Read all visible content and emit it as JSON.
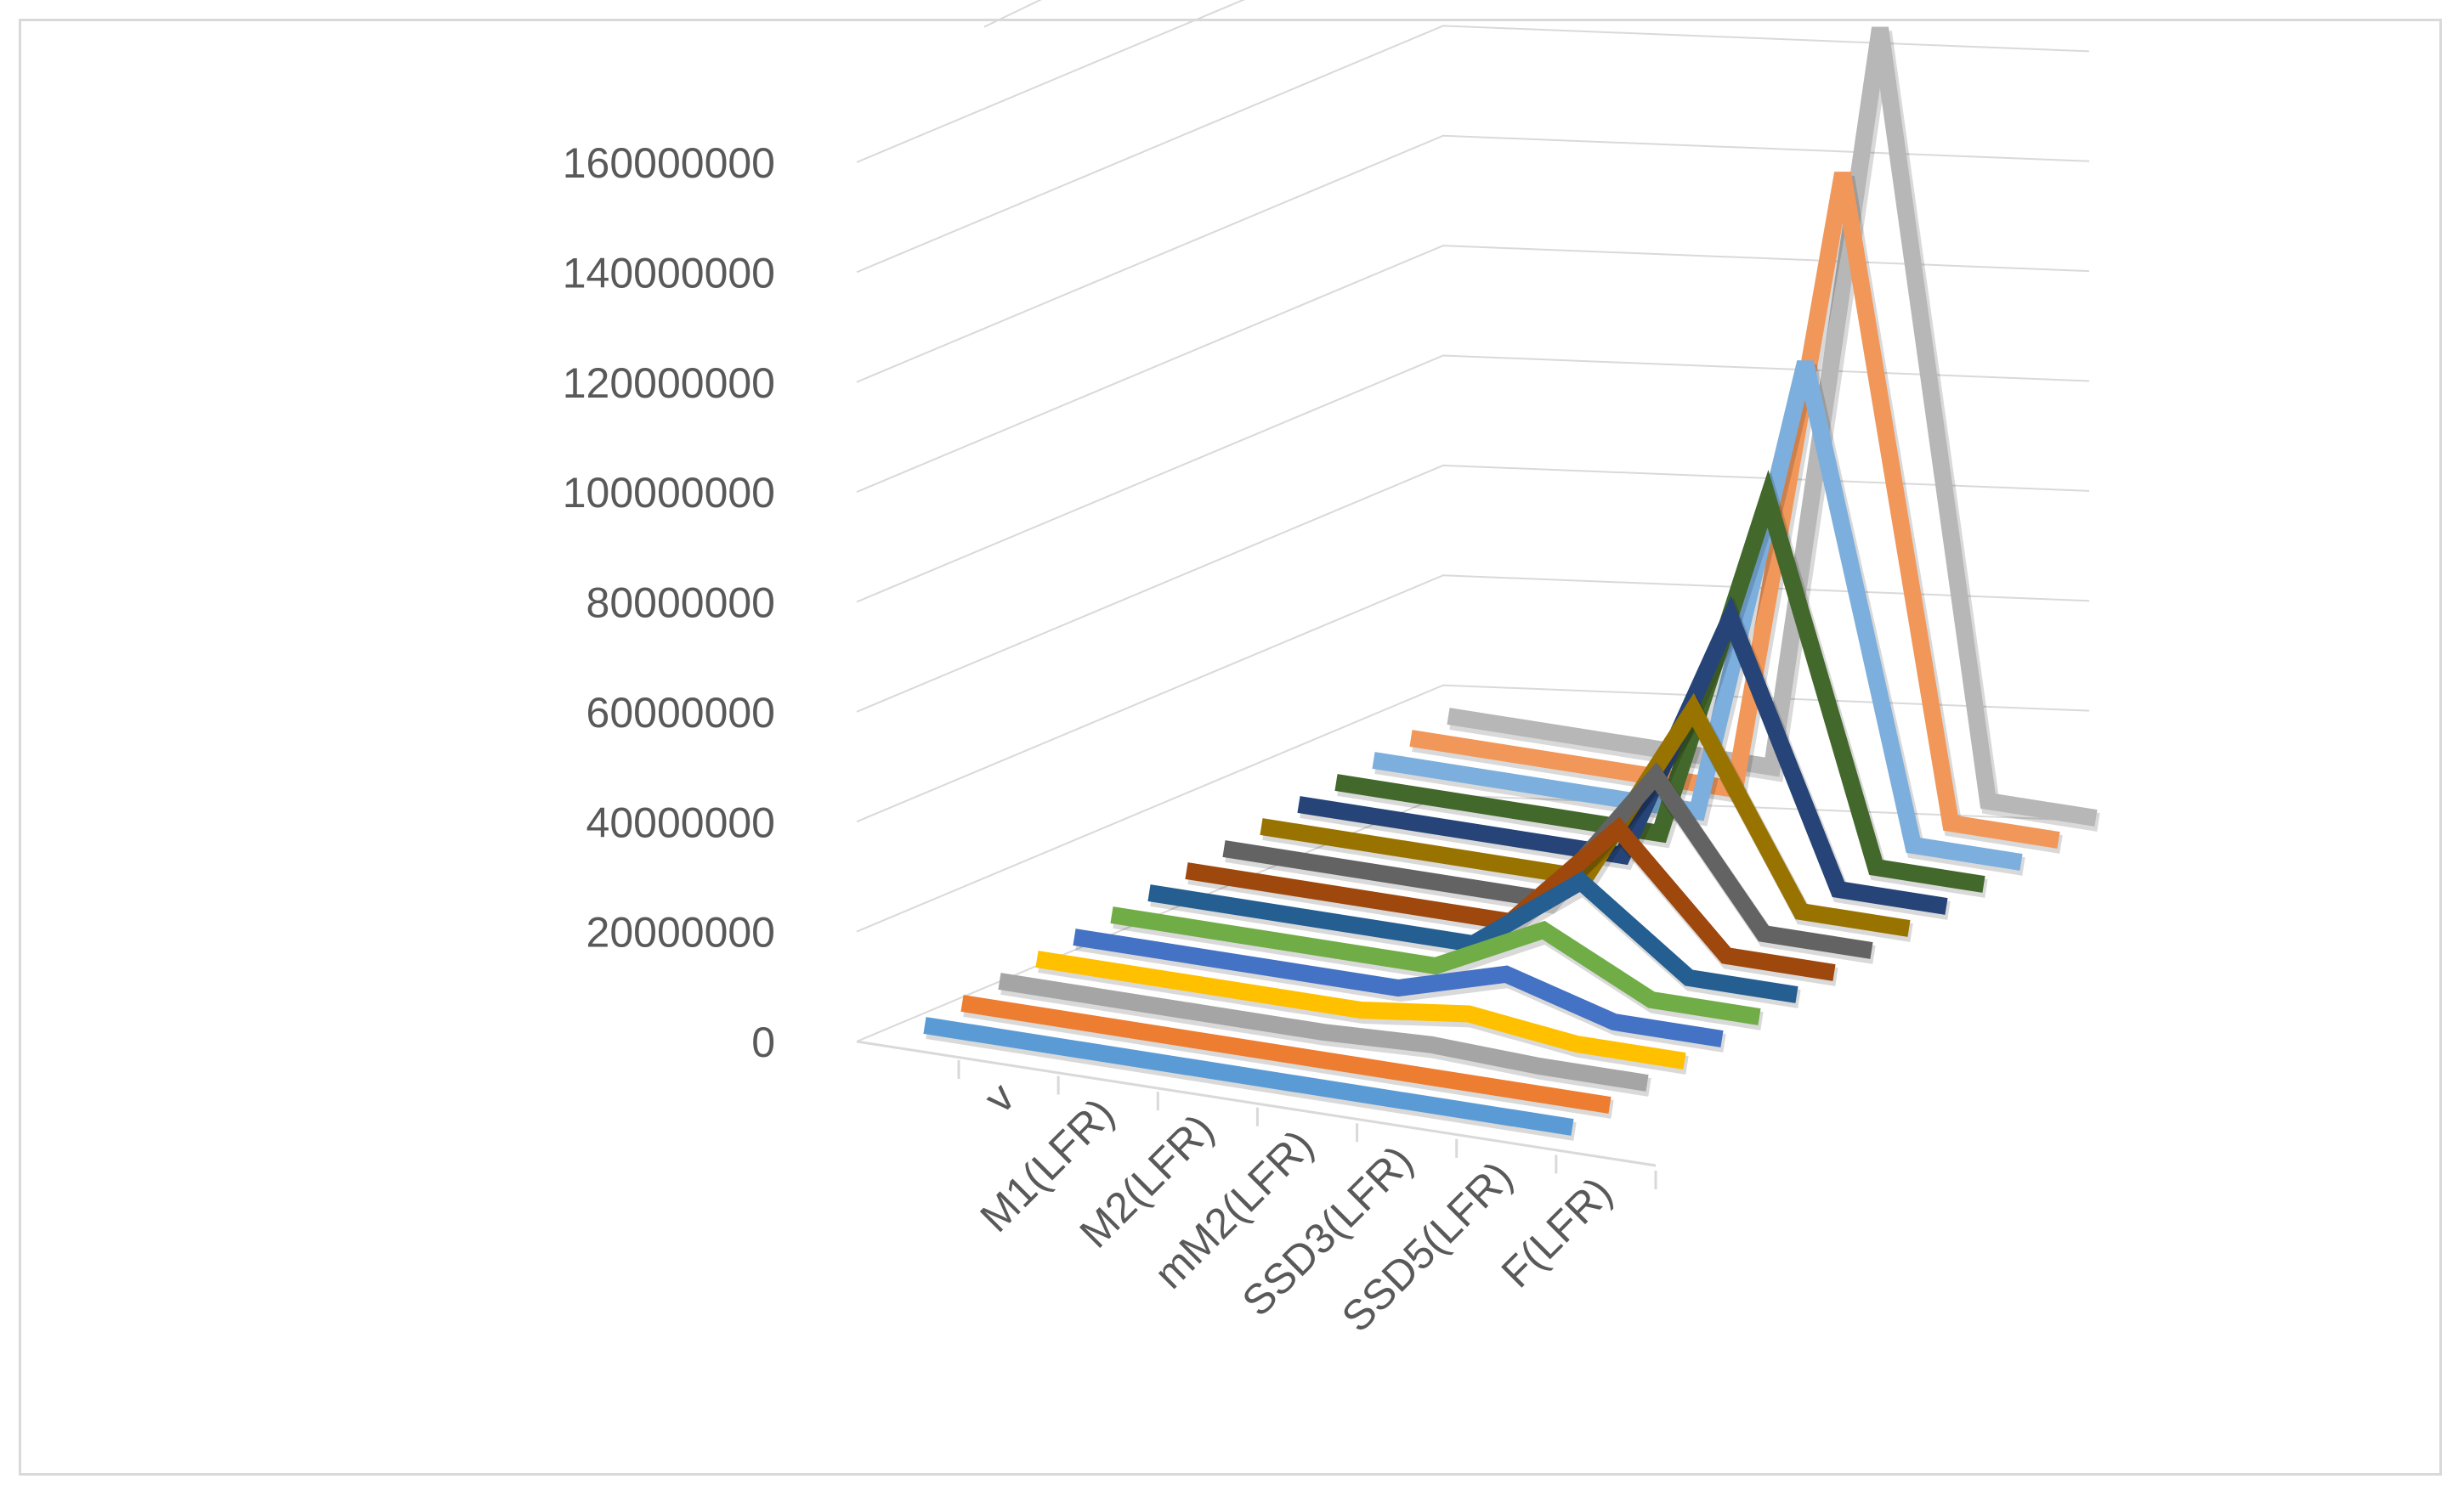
{
  "chart_data": {
    "type": "line",
    "subtype": "3d-line",
    "title": "",
    "xlabel": "",
    "ylabel": "",
    "ylim": [
      0,
      160000000
    ],
    "yticks": [
      "0",
      "20000000",
      "40000000",
      "60000000",
      "80000000",
      "100000000",
      "120000000",
      "140000000",
      "160000000"
    ],
    "categories": [
      "v",
      "M1(LFR)",
      "M2(LFR)",
      "mM2(LFR)",
      "SSD3(LFR)",
      "SSD5(LFR)",
      "F(LFR)"
    ],
    "grid": true,
    "legend": "none",
    "series": [
      {
        "color": "#5B9BD5",
        "values": [
          0,
          0,
          0,
          0,
          0,
          0,
          0
        ]
      },
      {
        "color": "#ED7D31",
        "values": [
          0,
          0,
          0,
          0,
          0,
          0,
          0
        ]
      },
      {
        "color": "#A5A5A5",
        "values": [
          0,
          0,
          0,
          0,
          1000000,
          0,
          0
        ]
      },
      {
        "color": "#FFC000",
        "values": [
          0,
          0,
          0,
          0,
          3000000,
          0,
          0
        ]
      },
      {
        "color": "#4472C4",
        "values": [
          0,
          0,
          0,
          0,
          7000000,
          0,
          0
        ]
      },
      {
        "color": "#70AD47",
        "values": [
          0,
          0,
          0,
          0,
          12000000,
          0,
          0
        ]
      },
      {
        "color": "#255E91",
        "values": [
          0,
          0,
          0,
          0,
          18000000,
          0,
          0
        ]
      },
      {
        "color": "#9E480E",
        "values": [
          0,
          0,
          0,
          0,
          25000000,
          0,
          0
        ]
      },
      {
        "color": "#636363",
        "values": [
          0,
          0,
          0,
          0,
          32000000,
          0,
          0
        ]
      },
      {
        "color": "#997300",
        "values": [
          0,
          0,
          0,
          0,
          42000000,
          0,
          0
        ]
      },
      {
        "color": "#264478",
        "values": [
          0,
          0,
          0,
          0,
          58000000,
          0,
          0
        ]
      },
      {
        "color": "#43682B",
        "values": [
          0,
          0,
          0,
          0,
          80000000,
          0,
          0
        ]
      },
      {
        "color": "#7CAFDD",
        "values": [
          0,
          0,
          0,
          0,
          106000000,
          0,
          0
        ]
      },
      {
        "color": "#F1975A",
        "values": [
          0,
          0,
          0,
          0,
          144000000,
          0,
          0
        ]
      },
      {
        "color": "#B7B7B7",
        "values": [
          0,
          0,
          0,
          0,
          172000000,
          0,
          0
        ]
      }
    ]
  }
}
